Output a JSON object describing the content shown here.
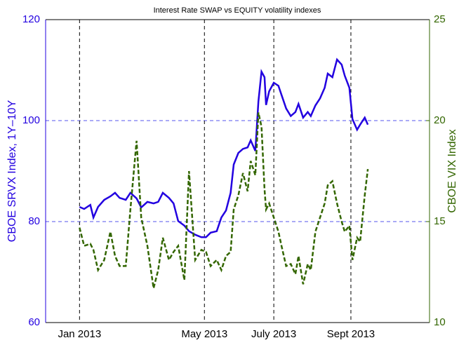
{
  "chart_data": {
    "type": "line",
    "title": "Interest Rate SWAP vs EQUITY volatility indexes",
    "y_label": "CBOE SRVX Index, 1Y–10Y",
    "y2_label": "CBOE VIX Index",
    "x": [
      0,
      3,
      7,
      9,
      12,
      16,
      20,
      23,
      26,
      30,
      33,
      37,
      40,
      44,
      48,
      51,
      54,
      58,
      61,
      64,
      68,
      71,
      75,
      79,
      82,
      85,
      89,
      92,
      95,
      98,
      100,
      103,
      106,
      109,
      111,
      114,
      116,
      118,
      120,
      121,
      123,
      126,
      129,
      131,
      134,
      137,
      140,
      142,
      145,
      148,
      150,
      153,
      156,
      159,
      161,
      164,
      167,
      170,
      172,
      175,
      177,
      180,
      182,
      185,
      187
    ],
    "series": [
      {
        "name": "CBOE SRVX Index, 1Y–10Y",
        "color": "#2200e0",
        "dash": false,
        "values": [
          82.9,
          82.5,
          83.3,
          80.8,
          82.9,
          84.3,
          85.0,
          85.7,
          84.7,
          84.3,
          85.7,
          84.6,
          82.8,
          83.9,
          83.6,
          83.9,
          85.7,
          84.7,
          83.6,
          80.1,
          79.2,
          78.1,
          77.4,
          76.9,
          76.9,
          77.8,
          78.1,
          80.8,
          82.2,
          85.7,
          91.3,
          93.6,
          94.4,
          94.7,
          96.1,
          94.0,
          103.8,
          109.7,
          108.6,
          103.1,
          105.8,
          107.5,
          106.9,
          105.1,
          102.4,
          100.9,
          101.7,
          103.3,
          100.6,
          101.7,
          100.9,
          103.0,
          104.4,
          106.5,
          109.3,
          108.6,
          112.1,
          111.1,
          108.9,
          106.5,
          100.3,
          98.2,
          99.2,
          100.6,
          99.2
        ]
      },
      {
        "name": "CBOE VIX Index",
        "color": "#336600",
        "dash": true,
        "axis": "y2",
        "values": [
          14.7,
          13.8,
          13.9,
          13.6,
          12.6,
          13.1,
          14.5,
          13.3,
          12.8,
          12.8,
          15.6,
          19.0,
          15.2,
          13.8,
          11.7,
          12.6,
          14.2,
          13.1,
          13.5,
          13.8,
          12.1,
          17.5,
          13.1,
          13.6,
          13.5,
          12.8,
          13.1,
          12.6,
          13.3,
          13.5,
          15.6,
          16.3,
          17.4,
          16.5,
          18.0,
          17.3,
          20.4,
          19.7,
          16.6,
          15.6,
          15.9,
          15.2,
          14.5,
          13.8,
          12.8,
          12.9,
          12.4,
          13.3,
          11.9,
          12.9,
          12.6,
          14.5,
          15.2,
          15.9,
          16.8,
          17.0,
          15.9,
          15.0,
          14.5,
          14.8,
          13.1,
          14.2,
          14.0,
          16.3,
          17.6
        ]
      }
    ],
    "xlim": [
      -22,
      227
    ],
    "xticks": [
      {
        "value": 0,
        "label": "Jan 2013"
      },
      {
        "value": 81,
        "label": "May 2013"
      },
      {
        "value": 126,
        "label": "July 2013"
      },
      {
        "value": 176,
        "label": "Sept 2013"
      }
    ],
    "ylim": [
      60,
      120
    ],
    "yticks": [
      60,
      80,
      100,
      120
    ],
    "y2lim": [
      10,
      25
    ],
    "y2ticks": [
      10,
      15,
      20,
      25
    ],
    "grid": true
  }
}
